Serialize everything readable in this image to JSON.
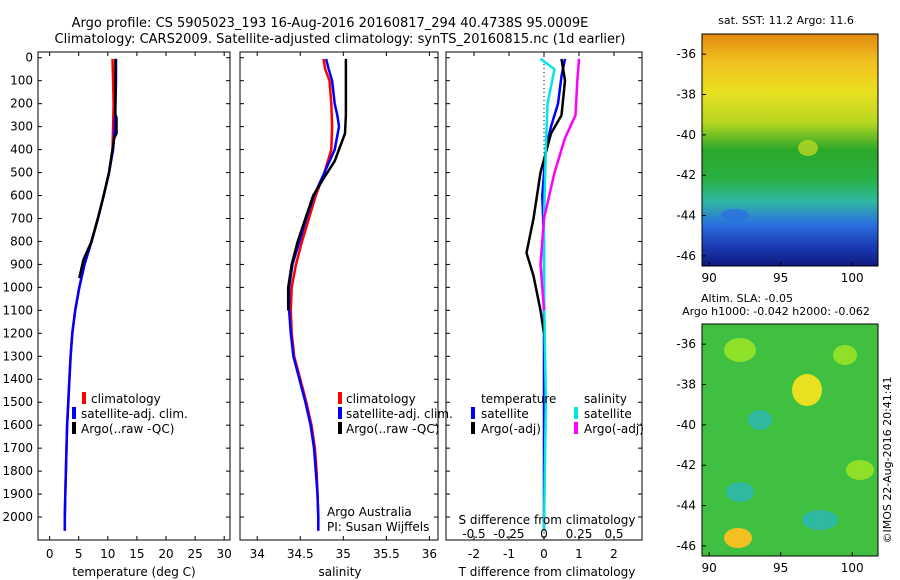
{
  "header": {
    "line1": "Argo profile: CS 5905023_193 16-Aug-2016 20160817_294 40.4738S 95.0009E",
    "line2": "Climatology: CARS2009. Satellite-adjusted climatology: synTS_20160815.nc (1d earlier)"
  },
  "colors": {
    "climatology": "#ff0000",
    "satellite": "#0000ff",
    "argo": "#000000",
    "sal_satellite": "#00e5e5",
    "sal_argo": "#ff00ff"
  },
  "chart_data": [
    {
      "type": "line",
      "id": "temperature",
      "xlabel": "temperature (deg C)",
      "ylabel": "",
      "xlim": [
        -2,
        31
      ],
      "ylim": [
        2100,
        0
      ],
      "xticks": [
        0,
        5,
        10,
        15,
        20,
        25,
        30
      ],
      "yticks": [
        0,
        100,
        200,
        300,
        400,
        500,
        600,
        700,
        800,
        900,
        1000,
        1100,
        1200,
        1300,
        1400,
        1500,
        1600,
        1700,
        1800,
        1900,
        2000
      ],
      "legend": [
        "climatology",
        "satellite-adj. clim.",
        "Argo(..raw -QC)"
      ],
      "series": [
        {
          "name": "climatology",
          "color": "#ff0000",
          "points": [
            [
              10.8,
              5
            ],
            [
              10.9,
              100
            ],
            [
              11.0,
              200
            ],
            [
              10.9,
              300
            ],
            [
              10.8,
              400
            ],
            [
              10.2,
              500
            ],
            [
              9.3,
              600
            ],
            [
              8.3,
              700
            ],
            [
              7.2,
              800
            ],
            [
              6.0,
              900
            ],
            [
              5.1,
              1000
            ],
            [
              4.4,
              1100
            ],
            [
              3.9,
              1200
            ],
            [
              3.6,
              1300
            ],
            [
              3.4,
              1400
            ],
            [
              3.2,
              1500
            ],
            [
              3.0,
              1600
            ],
            [
              2.9,
              1700
            ],
            [
              2.8,
              1800
            ],
            [
              2.7,
              1900
            ],
            [
              2.6,
              2000
            ],
            [
              2.6,
              2060
            ]
          ]
        },
        {
          "name": "satellite-adj. clim.",
          "color": "#0000ff",
          "points": [
            [
              11.4,
              5
            ],
            [
              11.4,
              100
            ],
            [
              11.3,
              200
            ],
            [
              11.2,
              300
            ],
            [
              10.9,
              400
            ],
            [
              10.2,
              500
            ],
            [
              9.3,
              600
            ],
            [
              8.3,
              700
            ],
            [
              7.2,
              800
            ],
            [
              6.0,
              900
            ],
            [
              5.1,
              1000
            ],
            [
              4.4,
              1100
            ],
            [
              3.9,
              1200
            ],
            [
              3.6,
              1300
            ],
            [
              3.4,
              1400
            ],
            [
              3.2,
              1500
            ],
            [
              3.0,
              1600
            ],
            [
              2.9,
              1700
            ],
            [
              2.8,
              1800
            ],
            [
              2.7,
              1900
            ],
            [
              2.6,
              2000
            ],
            [
              2.6,
              2060
            ]
          ]
        },
        {
          "name": "Argo(..raw -QC)",
          "color": "#000000",
          "points": [
            [
              11.3,
              5
            ],
            [
              11.3,
              100
            ],
            [
              11.3,
              250
            ],
            [
              11.5,
              260
            ],
            [
              11.5,
              330
            ],
            [
              11.1,
              350
            ],
            [
              10.8,
              400
            ],
            [
              10.2,
              500
            ],
            [
              9.3,
              600
            ],
            [
              8.3,
              700
            ],
            [
              7.2,
              800
            ],
            [
              5.8,
              880
            ],
            [
              5.1,
              960
            ]
          ]
        }
      ]
    },
    {
      "type": "line",
      "id": "salinity",
      "xlabel": "salinity",
      "ylabel": "",
      "xlim": [
        33.8,
        36.1
      ],
      "ylim": [
        2100,
        0
      ],
      "xticks": [
        "34",
        "34.5",
        "35",
        "35.5",
        "36"
      ],
      "legend": [
        "climatology",
        "satellite-adj. clim.",
        "Argo(..raw -QC)"
      ],
      "annotation": [
        "Argo Australia",
        "PI: Susan Wijffels"
      ],
      "series": [
        {
          "name": "climatology",
          "color": "#ff0000",
          "points": [
            [
              34.77,
              5
            ],
            [
              34.79,
              50
            ],
            [
              34.84,
              100
            ],
            [
              34.86,
              200
            ],
            [
              34.87,
              300
            ],
            [
              34.86,
              400
            ],
            [
              34.78,
              500
            ],
            [
              34.68,
              600
            ],
            [
              34.6,
              700
            ],
            [
              34.52,
              800
            ],
            [
              34.45,
              900
            ],
            [
              34.4,
              1000
            ],
            [
              34.39,
              1100
            ],
            [
              34.4,
              1200
            ],
            [
              34.43,
              1300
            ],
            [
              34.5,
              1400
            ],
            [
              34.57,
              1500
            ],
            [
              34.63,
              1600
            ],
            [
              34.67,
              1700
            ],
            [
              34.69,
              1800
            ],
            [
              34.7,
              1900
            ],
            [
              34.71,
              2000
            ],
            [
              34.71,
              2060
            ]
          ]
        },
        {
          "name": "satellite-adj. clim.",
          "color": "#0000ff",
          "points": [
            [
              34.8,
              5
            ],
            [
              34.83,
              50
            ],
            [
              34.87,
              100
            ],
            [
              34.9,
              200
            ],
            [
              34.93,
              250
            ],
            [
              34.95,
              300
            ],
            [
              34.9,
              400
            ],
            [
              34.78,
              500
            ],
            [
              34.66,
              600
            ],
            [
              34.57,
              700
            ],
            [
              34.49,
              800
            ],
            [
              34.41,
              900
            ],
            [
              34.37,
              1000
            ],
            [
              34.37,
              1100
            ],
            [
              34.39,
              1200
            ],
            [
              34.42,
              1300
            ],
            [
              34.49,
              1400
            ],
            [
              34.56,
              1500
            ],
            [
              34.62,
              1600
            ],
            [
              34.66,
              1700
            ],
            [
              34.68,
              1800
            ],
            [
              34.7,
              1900
            ],
            [
              34.71,
              2000
            ],
            [
              34.71,
              2060
            ]
          ]
        },
        {
          "name": "Argo(..raw -QC)",
          "color": "#000000",
          "points": [
            [
              35.03,
              5
            ],
            [
              35.03,
              100
            ],
            [
              35.03,
              250
            ],
            [
              35.02,
              330
            ],
            [
              34.97,
              380
            ],
            [
              34.9,
              450
            ],
            [
              34.78,
              520
            ],
            [
              34.65,
              600
            ],
            [
              34.56,
              700
            ],
            [
              34.47,
              800
            ],
            [
              34.4,
              900
            ],
            [
              34.36,
              1000
            ],
            [
              34.36,
              1100
            ]
          ]
        }
      ]
    },
    {
      "type": "line",
      "id": "difference",
      "xlabel": "T difference from climatology",
      "top_label": "S difference from climatology",
      "top_ticks": [
        "-0.5",
        "-0.25",
        "0",
        "0.25",
        "0.5"
      ],
      "xlim": [
        -2.8,
        2.8
      ],
      "ylim": [
        2100,
        0
      ],
      "xticks": [
        "-2",
        "-1",
        "0",
        "1",
        "2"
      ],
      "legend_groups": [
        {
          "title": "temperature",
          "items": [
            "satellite",
            "Argo(-adj)"
          ]
        },
        {
          "title": "salinity",
          "items": [
            "satellite",
            "Argo(-adj)"
          ]
        }
      ],
      "series": [
        {
          "name": "temperature satellite",
          "color": "#0000ff",
          "points": [
            [
              0.6,
              5
            ],
            [
              0.5,
              80
            ],
            [
              0.4,
              200
            ],
            [
              0.2,
              300
            ],
            [
              0.05,
              400
            ],
            [
              -0.05,
              600
            ],
            [
              0.0,
              800
            ],
            [
              0.0,
              1000
            ],
            [
              0.0,
              1200
            ],
            [
              0.0,
              1500
            ],
            [
              0.0,
              2060
            ]
          ]
        },
        {
          "name": "temperature Argo(-adj)",
          "color": "#000000",
          "points": [
            [
              0.5,
              5
            ],
            [
              0.6,
              100
            ],
            [
              0.5,
              250
            ],
            [
              0.2,
              330
            ],
            [
              -0.1,
              500
            ],
            [
              -0.3,
              700
            ],
            [
              -0.5,
              850
            ],
            [
              -0.3,
              950
            ],
            [
              -0.1,
              1100
            ],
            [
              0.0,
              1200
            ]
          ]
        },
        {
          "name": "salinity satellite",
          "color": "#00e5e5",
          "points": [
            [
              -0.1,
              5
            ],
            [
              0.3,
              50
            ],
            [
              0.1,
              200
            ],
            [
              0.05,
              400
            ],
            [
              0.0,
              700
            ],
            [
              0.0,
              1000
            ],
            [
              0.05,
              1500
            ],
            [
              0.0,
              2060
            ]
          ]
        },
        {
          "name": "salinity Argo(-adj)",
          "color": "#ff00ff",
          "points": [
            [
              1.0,
              5
            ],
            [
              0.95,
              100
            ],
            [
              0.9,
              250
            ],
            [
              0.6,
              350
            ],
            [
              0.3,
              500
            ],
            [
              0.0,
              700
            ],
            [
              -0.1,
              900
            ],
            [
              0.0,
              1100
            ]
          ]
        }
      ]
    },
    {
      "type": "heatmap",
      "id": "sst-map",
      "title": "sat. SST: 11.2 Argo: 11.6",
      "xticks": [
        "90",
        "95",
        "100"
      ],
      "yticks": [
        "-36",
        "-38",
        "-40",
        "-42",
        "-44",
        "-46"
      ]
    },
    {
      "type": "heatmap",
      "id": "sla-map",
      "title_lines": [
        "Altim. SLA: -0.05",
        "Argo h1000: -0.042 h2000: -0.062"
      ],
      "xticks": [
        "90",
        "95",
        "100"
      ],
      "yticks": [
        "-36",
        "-38",
        "-40",
        "-42",
        "-44",
        "-46"
      ]
    }
  ],
  "footer": {
    "stamp": "©IMOS 22-Aug-2016 20:41:41"
  }
}
